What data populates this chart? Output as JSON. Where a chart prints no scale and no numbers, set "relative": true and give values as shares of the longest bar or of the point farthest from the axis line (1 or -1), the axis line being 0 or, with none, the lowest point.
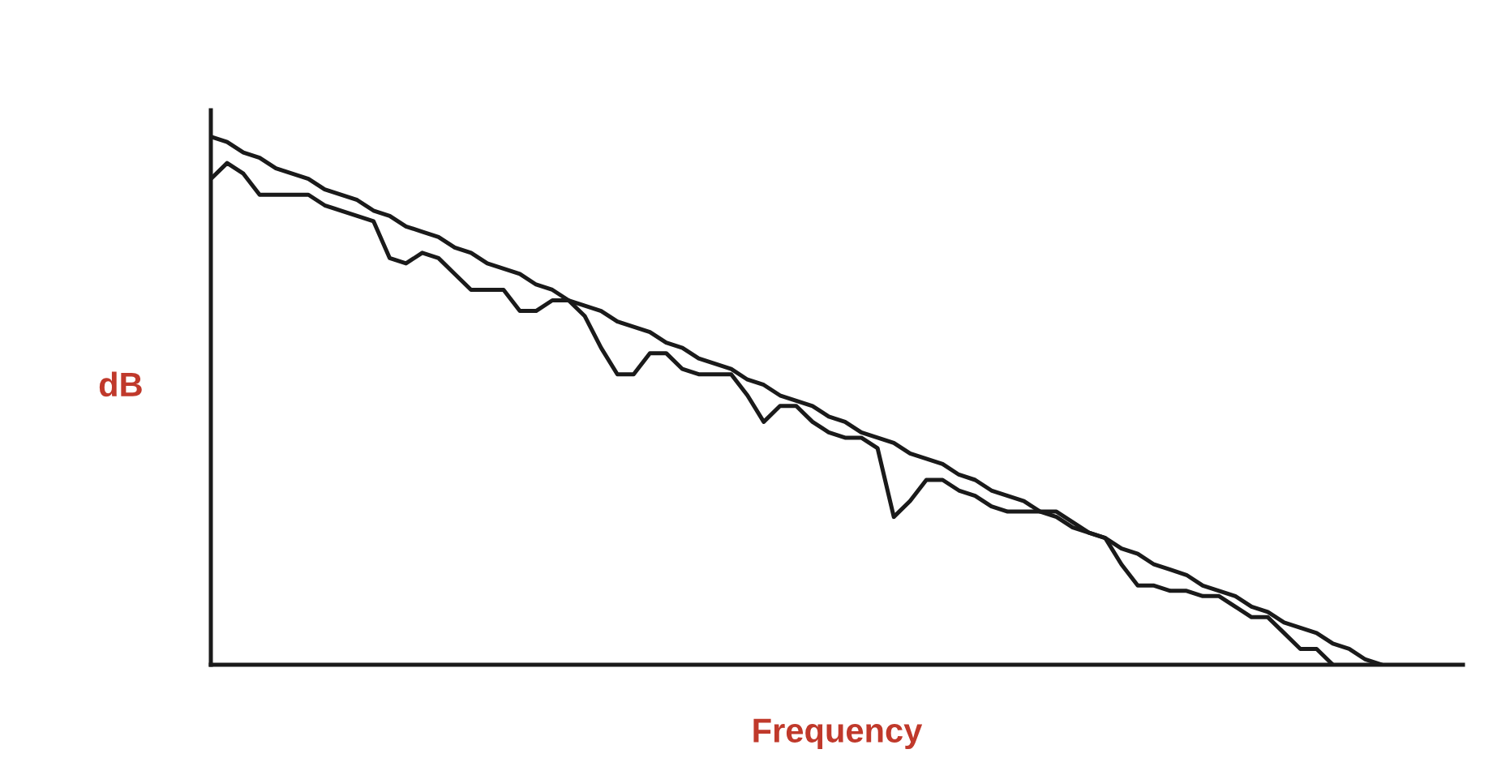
{
  "chart_data": {
    "type": "line",
    "relative": true,
    "xlabel": "Frequency",
    "ylabel": "dB",
    "grid": false,
    "marker": "none",
    "line_style": "solid",
    "categories": [
      null,
      null,
      null,
      null,
      null,
      null,
      null,
      null,
      null,
      null,
      null,
      null,
      null,
      null,
      null,
      null,
      null,
      null,
      null,
      null,
      null,
      null,
      null,
      null,
      null,
      null,
      null,
      null,
      null,
      null,
      null,
      null,
      null,
      null,
      null,
      null,
      null,
      null,
      null,
      null,
      null,
      null,
      null,
      null,
      null,
      null,
      null,
      null,
      null,
      null,
      null,
      null,
      null,
      null,
      null,
      null,
      null,
      null,
      null,
      null,
      null,
      null,
      null,
      null,
      null,
      null,
      null,
      null,
      null,
      null,
      null,
      null,
      null,
      null,
      null,
      null,
      null,
      null
    ],
    "series": [
      {
        "color": "#1a1a1a",
        "values": [
          1.0,
          0.99,
          0.97,
          0.96,
          0.94,
          0.93,
          0.92,
          0.9,
          0.89,
          0.88,
          0.86,
          0.85,
          0.83,
          0.82,
          0.81,
          0.79,
          0.78,
          0.76,
          0.75,
          0.74,
          0.72,
          0.71,
          0.69,
          0.68,
          0.67,
          0.65,
          0.64,
          0.63,
          0.61,
          0.6,
          0.58,
          0.57,
          0.56,
          0.54,
          0.53,
          0.51,
          0.5,
          0.49,
          0.47,
          0.46,
          0.44,
          0.43,
          0.42,
          0.4,
          0.39,
          0.38,
          0.36,
          0.35,
          0.33,
          0.32,
          0.31,
          0.29,
          0.28,
          0.26,
          0.25,
          0.24,
          0.22,
          0.21,
          0.19,
          0.18,
          0.17,
          0.15,
          0.14,
          0.13,
          0.11,
          0.1,
          0.08,
          0.07,
          0.06,
          0.04,
          0.03,
          0.01,
          0,
          null,
          null,
          null,
          null,
          null
        ]
      },
      {
        "color": "#1a1a1a",
        "values": [
          0.92,
          0.95,
          0.93,
          0.89,
          0.89,
          0.89,
          0.89,
          0.87,
          0.86,
          0.85,
          0.84,
          0.77,
          0.76,
          0.78,
          0.77,
          0.74,
          0.71,
          0.71,
          0.71,
          0.67,
          0.67,
          0.69,
          0.69,
          0.66,
          0.6,
          0.55,
          0.55,
          0.59,
          0.59,
          0.56,
          0.55,
          0.55,
          0.55,
          0.51,
          0.46,
          0.49,
          0.49,
          0.46,
          0.44,
          0.43,
          0.43,
          0.41,
          0.28,
          0.31,
          0.35,
          0.35,
          0.33,
          0.32,
          0.3,
          0.29,
          0.29,
          0.29,
          0.29,
          0.27,
          0.25,
          0.24,
          0.19,
          0.15,
          0.15,
          0.14,
          0.14,
          0.13,
          0.13,
          0.11,
          0.09,
          0.09,
          0.06,
          0.03,
          0.03,
          0,
          null,
          null,
          null,
          null,
          null,
          null,
          null,
          null
        ]
      }
    ]
  }
}
